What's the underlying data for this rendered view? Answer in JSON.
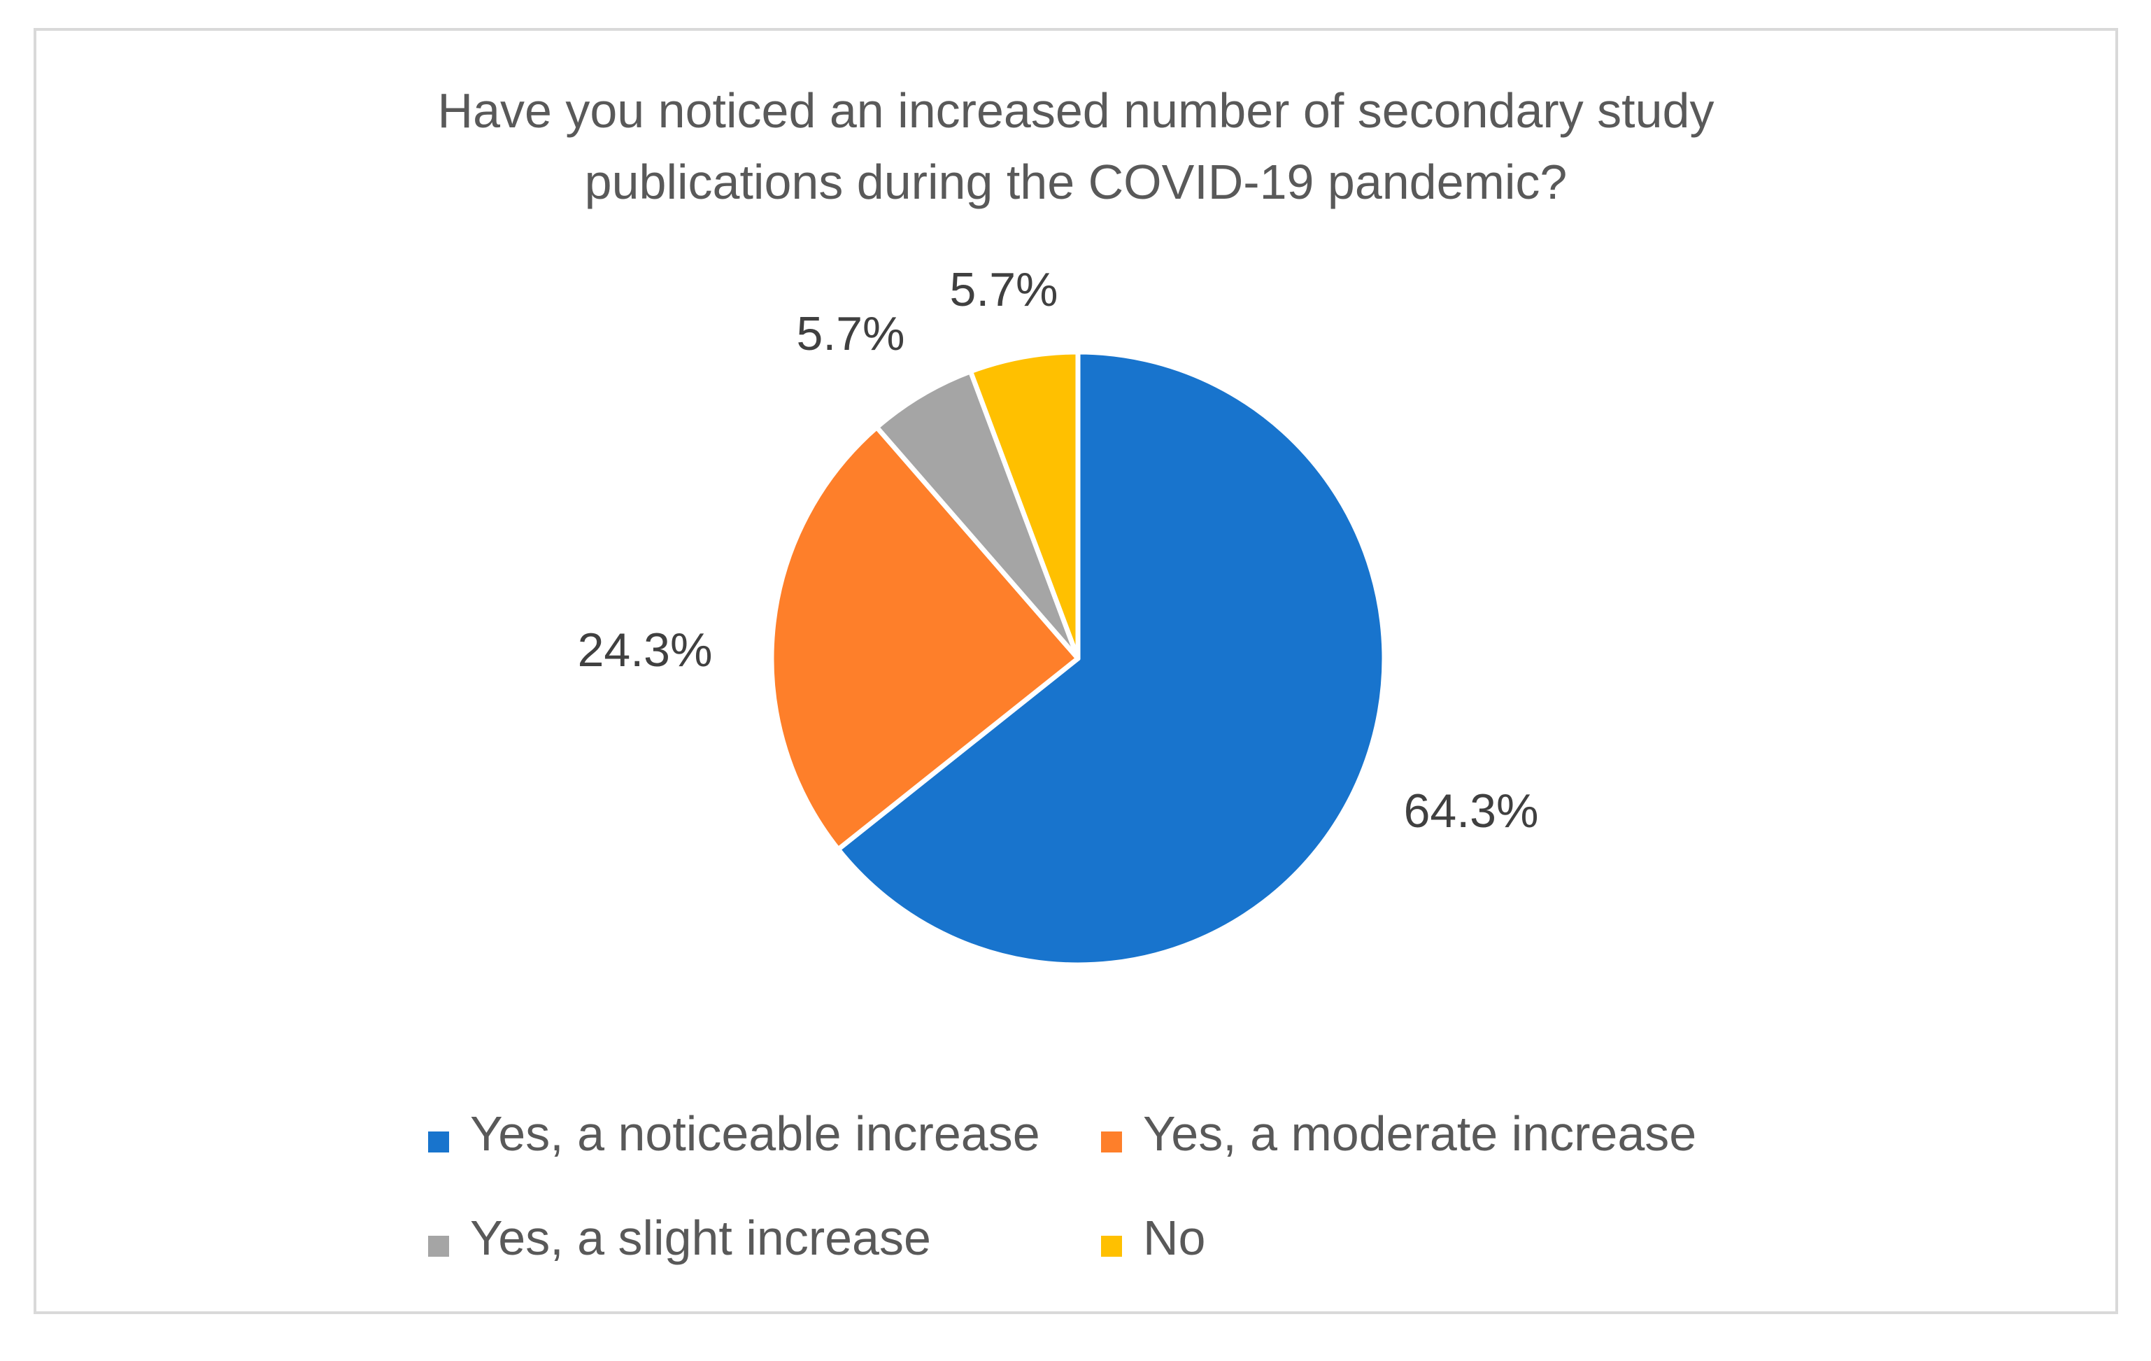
{
  "chart_data": {
    "type": "pie",
    "title_lines": [
      "Have you noticed an increased number of secondary study",
      "publications during the COVID-19 pandemic?"
    ],
    "categories": [
      "Yes, a noticeable increase",
      "Yes, a moderate increase",
      "Yes, a slight increase",
      "No"
    ],
    "values": [
      64.3,
      24.3,
      5.7,
      5.7
    ],
    "data_labels": [
      "64.3%",
      "24.3%",
      "5.7%",
      "5.7%"
    ],
    "colors": [
      "#1874cd",
      "#fe7f2a",
      "#a5a5a5",
      "#ffc000"
    ],
    "start": "12 o'clock",
    "direction": "clockwise",
    "legend_position": "bottom"
  }
}
